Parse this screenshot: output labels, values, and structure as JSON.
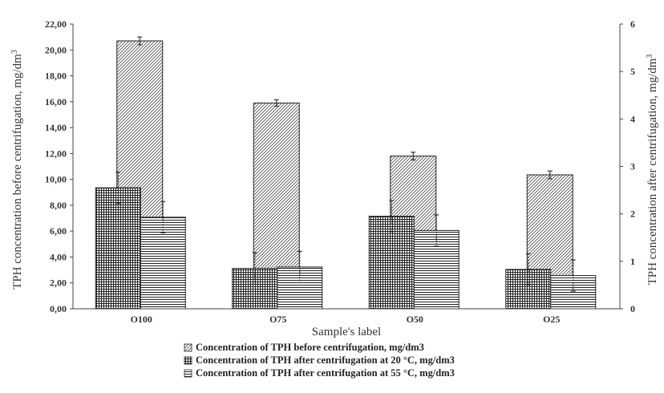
{
  "chart_data": {
    "type": "bar",
    "categories": [
      "O100",
      "O75",
      "O50",
      "O25"
    ],
    "xlabel": "Sample's label",
    "ylabel_left": "TPH concentration before centrifugation, mg/dm",
    "ylabel_left_sup": "3",
    "ylabel_right": "TPH concentration after centrifugation, mg/dm",
    "ylabel_right_sup": "3",
    "ylim_left": [
      0,
      22
    ],
    "yticks_left": [
      "0,00",
      "2,00",
      "4,00",
      "6,00",
      "8,00",
      "10,00",
      "12,00",
      "14,00",
      "16,00",
      "18,00",
      "20,00",
      "22,00"
    ],
    "ylim_right": [
      0,
      6
    ],
    "yticks_right": [
      "0",
      "1",
      "2",
      "3",
      "4",
      "5",
      "6"
    ],
    "legend_position": "bottom",
    "series": [
      {
        "name": "Concentration of TPH before centrifugation, mg/dm3",
        "axis": "left",
        "pattern": "diagonal",
        "values": [
          20.7,
          15.9,
          11.8,
          10.35
        ],
        "errors": [
          0.3,
          0.25,
          0.3,
          0.3
        ]
      },
      {
        "name": "Concentration of TPH after centrifugation at 20 °C, mg/dm3",
        "axis": "right",
        "pattern": "grid",
        "values": [
          2.55,
          0.85,
          1.95,
          0.83
        ],
        "errors": [
          0.33,
          0.33,
          0.33,
          0.33
        ]
      },
      {
        "name": "Concentration of TPH after centrifugation at 55 °C, mg/dm3",
        "axis": "right",
        "pattern": "horizontal",
        "values": [
          1.93,
          0.88,
          1.65,
          0.7
        ],
        "errors": [
          0.33,
          0.33,
          0.33,
          0.33
        ]
      }
    ]
  }
}
